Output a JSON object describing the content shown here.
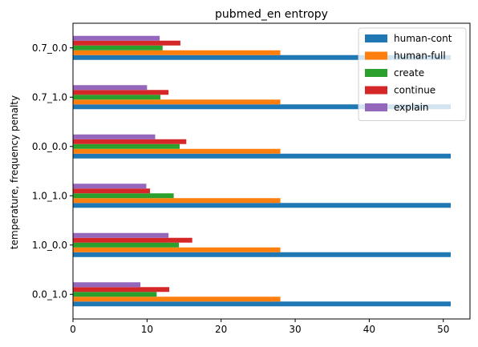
{
  "chart_data": {
    "type": "bar",
    "orientation": "horizontal",
    "title": "pubmed_en entropy",
    "xlabel": "",
    "ylabel": "temperature, frequency penalty",
    "categories": [
      "0.0_1.0",
      "1.0_0.0",
      "1.0_1.0",
      "0.0_0.0",
      "0.7_1.0",
      "0.7_0.0"
    ],
    "xlim": [
      0,
      53.6
    ],
    "xticks": [
      0,
      10,
      20,
      30,
      40,
      50
    ],
    "grid": false,
    "legend_position": "top-right",
    "series": [
      {
        "name": "human-cont",
        "color": "#1f77b4",
        "values": [
          51,
          51,
          51,
          51,
          51,
          51
        ]
      },
      {
        "name": "human-full",
        "color": "#ff7f0e",
        "values": [
          28,
          28,
          28,
          28,
          28,
          28
        ]
      },
      {
        "name": "create",
        "color": "#2ca02c",
        "values": [
          11.3,
          14.3,
          13.6,
          14.4,
          11.8,
          12.1
        ]
      },
      {
        "name": "continue",
        "color": "#d62728",
        "values": [
          13.0,
          16.1,
          10.4,
          15.3,
          12.9,
          14.5
        ]
      },
      {
        "name": "explain",
        "color": "#9467bd",
        "values": [
          9.1,
          12.9,
          9.9,
          11.1,
          10.0,
          11.7
        ]
      }
    ]
  }
}
